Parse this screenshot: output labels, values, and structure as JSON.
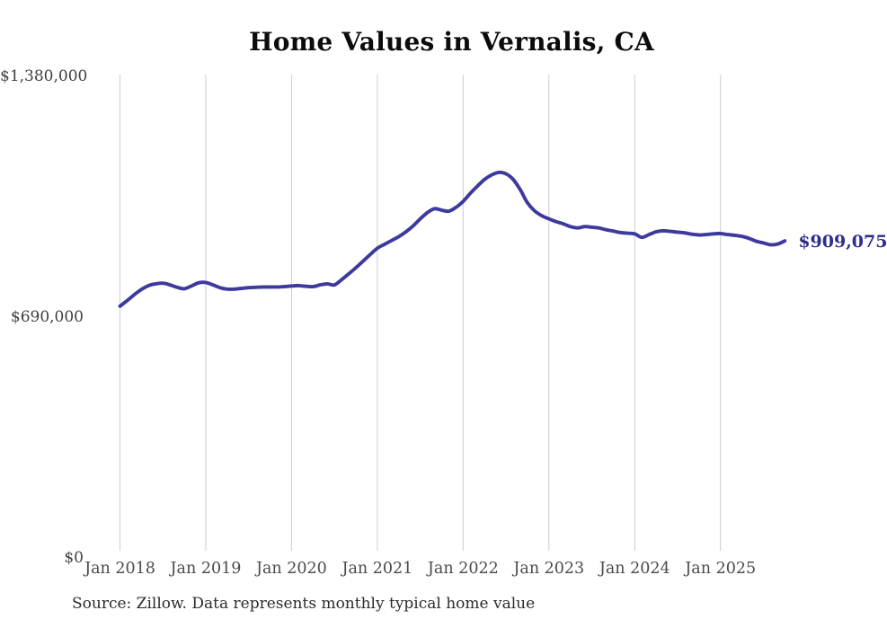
{
  "title": "Home Values in Vernalis, CA",
  "source_note": "Source: Zillow. Data represents monthly typical home value",
  "last_value_label": "$909,075",
  "colors": {
    "line": "#3c3a9d",
    "last_value_label": "#2e2e8b",
    "gridline": "#cccccc",
    "title": "#0c0c0c",
    "y_tick_label": "#3f3f3f",
    "x_tick_label": "#4a4a4a",
    "source": "#2b2b2b",
    "background": "#ffffff"
  },
  "chart_data": {
    "type": "line",
    "title": "Home Values in Vernalis, CA",
    "xlabel": "",
    "ylabel": "",
    "unit": "USD",
    "frequency": "monthly",
    "x_start": "Jan 2018",
    "x_end": "Oct 2025",
    "ylim": [
      0,
      1380000
    ],
    "grid": "vertical-only",
    "legend": "none",
    "y_ticks": [
      {
        "value": 0,
        "label": "$0"
      },
      {
        "value": 690000,
        "label": "$690,000"
      },
      {
        "value": 1380000,
        "label": "$1,380,000"
      }
    ],
    "x_ticks": [
      {
        "month_index": 0,
        "label": "Jan 2018"
      },
      {
        "month_index": 12,
        "label": "Jan 2019"
      },
      {
        "month_index": 24,
        "label": "Jan 2020"
      },
      {
        "month_index": 36,
        "label": "Jan 2021"
      },
      {
        "month_index": 48,
        "label": "Jan 2022"
      },
      {
        "month_index": 60,
        "label": "Jan 2023"
      },
      {
        "month_index": 72,
        "label": "Jan 2024"
      },
      {
        "month_index": 84,
        "label": "Jan 2025"
      }
    ],
    "series": [
      {
        "name": "Typical home value",
        "last_value": 909075,
        "values": [
          722000,
          738000,
          755000,
          770000,
          781000,
          786000,
          788000,
          783000,
          776000,
          772000,
          780000,
          789000,
          790000,
          783000,
          775000,
          771000,
          771000,
          773000,
          775000,
          776000,
          777000,
          777000,
          777000,
          778000,
          780000,
          781000,
          779000,
          778000,
          783000,
          786000,
          783000,
          798000,
          815000,
          832000,
          851000,
          870000,
          888000,
          899000,
          910000,
          921000,
          935000,
          952000,
          972000,
          990000,
          1001000,
          997000,
          994000,
          1005000,
          1022000,
          1045000,
          1066000,
          1085000,
          1098000,
          1105000,
          1101000,
          1085000,
          1055000,
          1018000,
          995000,
          981000,
          972000,
          964000,
          958000,
          950000,
          946000,
          950000,
          948000,
          946000,
          941000,
          937000,
          933000,
          931000,
          929000,
          919000,
          927000,
          935000,
          938000,
          936000,
          934000,
          932000,
          928000,
          926000,
          927000,
          929000,
          930000,
          927000,
          925000,
          922000,
          916000,
          908000,
          903000,
          898000,
          900000,
          909075
        ]
      }
    ]
  }
}
